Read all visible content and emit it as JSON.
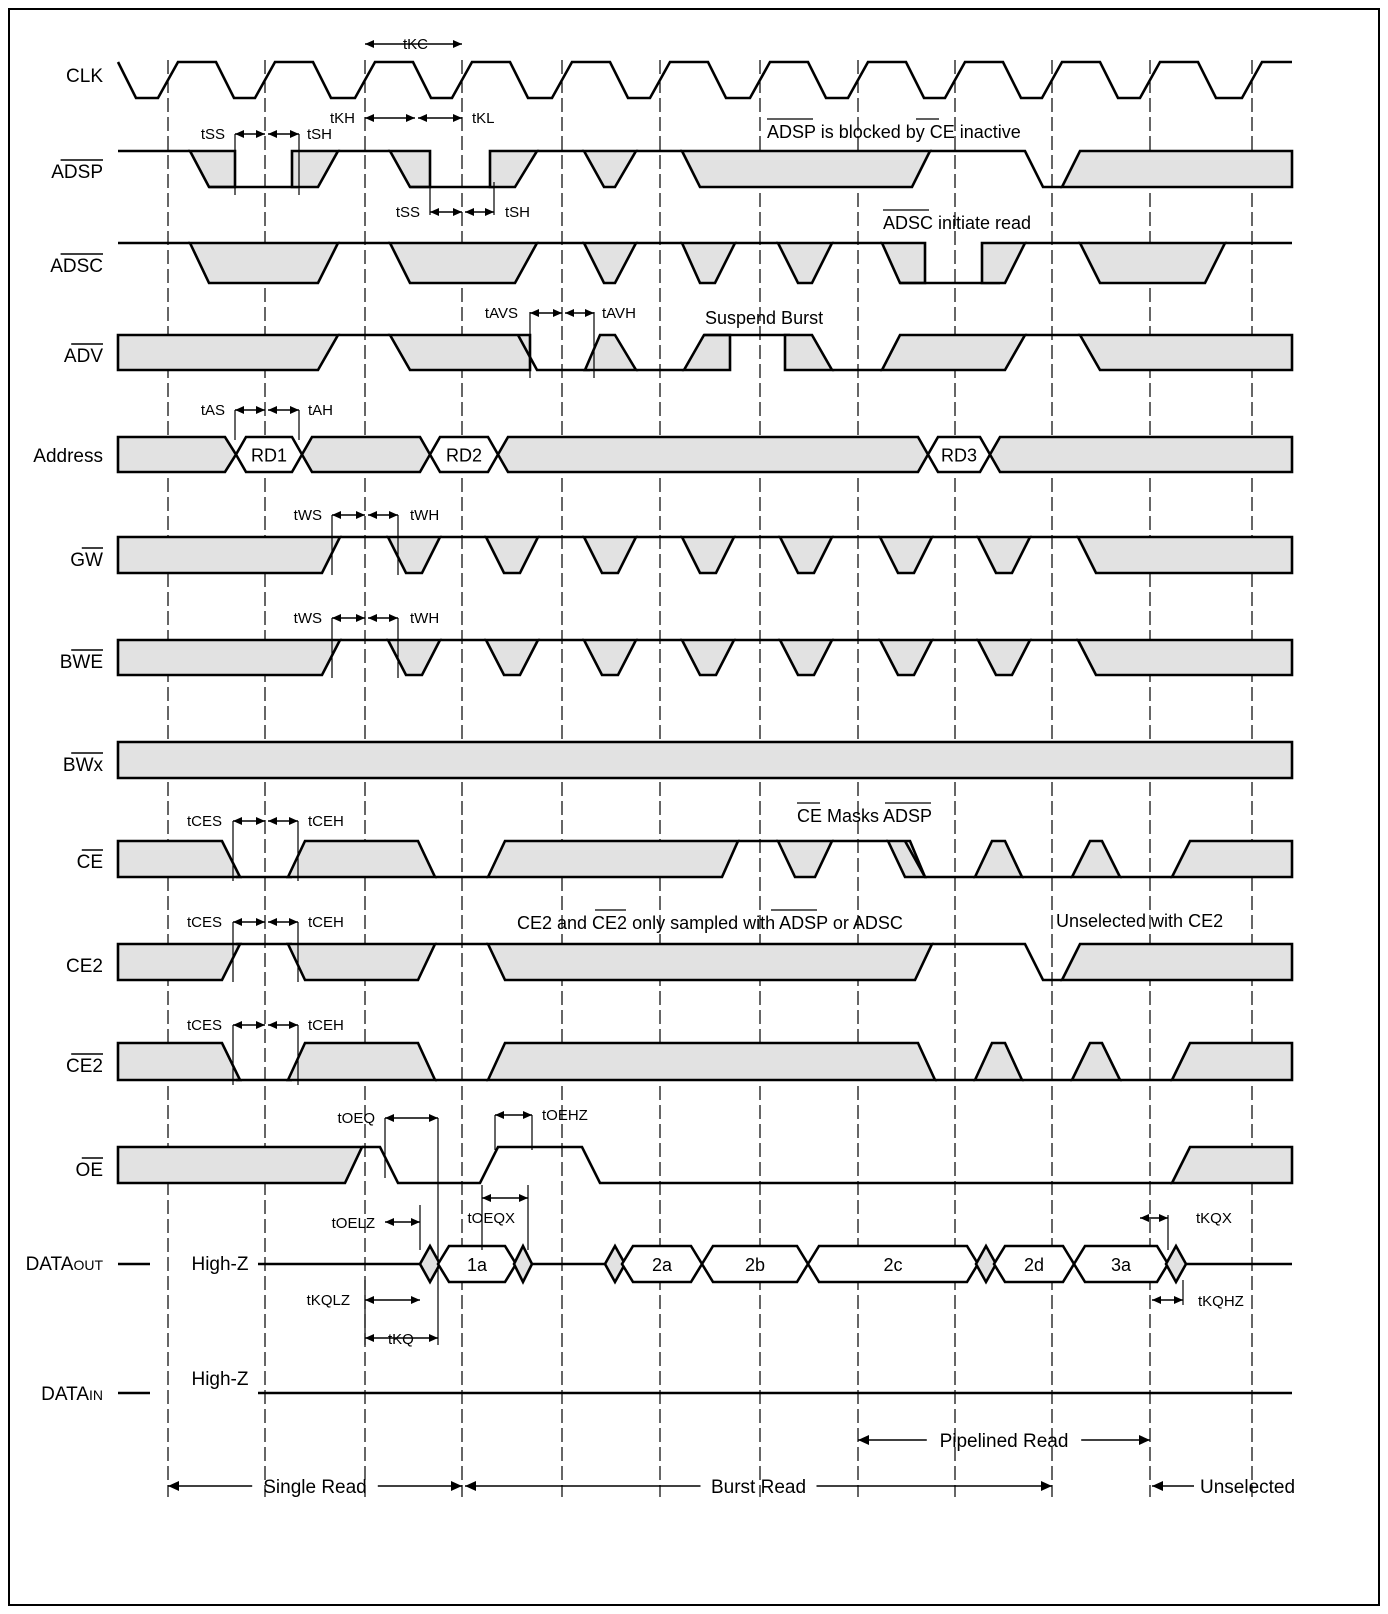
{
  "signals": [
    {
      "id": "clk",
      "label": "CLK",
      "overline": false
    },
    {
      "id": "adsp",
      "label": "ADSP",
      "overline": true
    },
    {
      "id": "adsc",
      "label": "ADSC",
      "overline": true
    },
    {
      "id": "adv",
      "label": "ADV",
      "overline": true
    },
    {
      "id": "addr",
      "label": "Address",
      "overline": false
    },
    {
      "id": "gw",
      "label": "GW",
      "overline": true
    },
    {
      "id": "bwe",
      "label": "BWE",
      "overline": true
    },
    {
      "id": "bwx",
      "label": "BWx",
      "overline": true
    },
    {
      "id": "ce",
      "label": "CE",
      "overline": true
    },
    {
      "id": "ce2",
      "label": "CE2",
      "overline": false
    },
    {
      "id": "ce2b",
      "label": "CE2",
      "overline": true
    },
    {
      "id": "oe",
      "label": "OE",
      "overline": true
    },
    {
      "id": "dout",
      "label": "DATAOUT",
      "overline": false
    },
    {
      "id": "din",
      "label": "DATAIN",
      "overline": false
    }
  ],
  "address_values": [
    "RD1",
    "RD2",
    "RD3"
  ],
  "data_out_values": [
    "1a",
    "2a",
    "2b",
    "2c",
    "2d",
    "3a"
  ],
  "high_z": "High-Z",
  "annotations": {
    "adsp_blocked": "ADSP is blocked by CE inactive",
    "adsc_initiate": "ADSC initiate read",
    "suspend_burst": "Suspend Burst",
    "ce_masks": "CE Masks ADSP",
    "ce2_sampled": "CE2 and CE2 only sampled with ADSP or ADSC",
    "unselected_ce2": "Unselected with CE2"
  },
  "timing_labels": [
    "tKC",
    "tKH",
    "tKL",
    "tSS",
    "tSH",
    "tAVS",
    "tAVH",
    "tAS",
    "tAH",
    "tWS",
    "tWH",
    "tCES",
    "tCEH",
    "tOEQ",
    "tOEHZ",
    "tOELZ",
    "tOEQX",
    "tKQLZ",
    "tKQ",
    "tKQX",
    "tKQHZ"
  ],
  "phases": {
    "single_read": "Single Read",
    "burst_read": "Burst Read",
    "pipelined_read": "Pipelined Read",
    "unselected": "Unselected"
  }
}
